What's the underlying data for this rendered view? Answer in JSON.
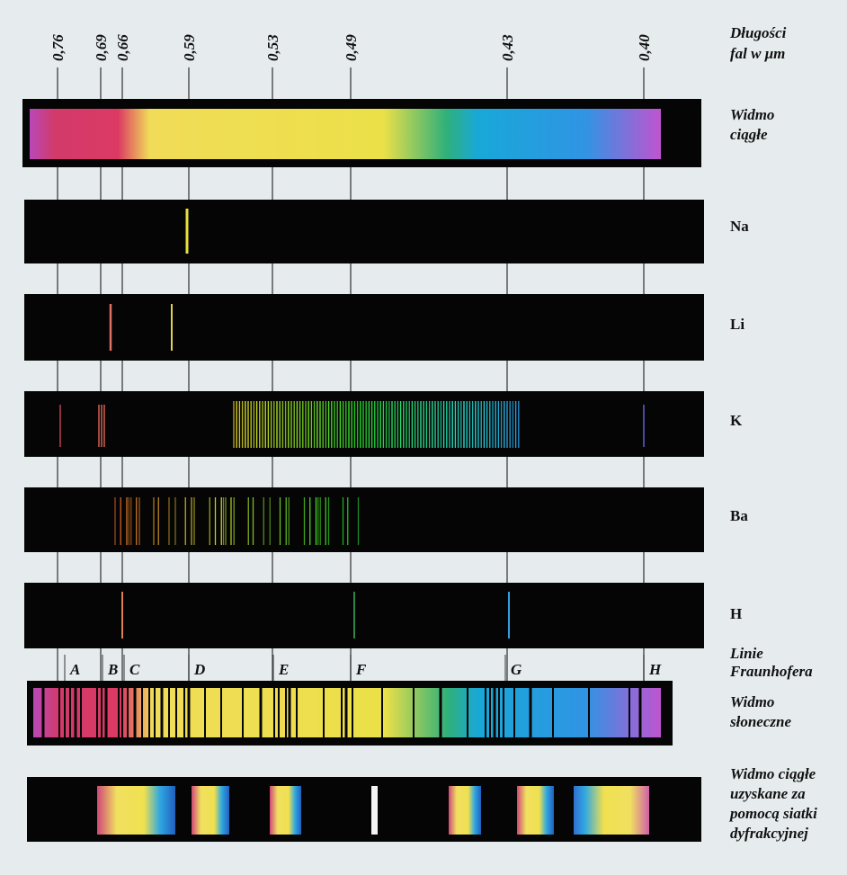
{
  "wavelength_header": [
    "Długości",
    "fal w μm"
  ],
  "wavelengths": [
    "0,76",
    "0,69",
    "0,66",
    "0,59",
    "0,53",
    "0,49",
    "0,43",
    "0,40"
  ],
  "spectra": [
    {
      "label": [
        "Widmo",
        "ciągłe"
      ]
    },
    {
      "label": [
        "Na"
      ]
    },
    {
      "label": [
        "Li"
      ]
    },
    {
      "label": [
        "K"
      ]
    },
    {
      "label": [
        "Ba"
      ]
    },
    {
      "label": [
        "H"
      ]
    },
    {
      "label": [
        "Widmo",
        "słoneczne"
      ]
    },
    {
      "label": [
        "Widmo ciągłe",
        "uzyskane za",
        "pomocą siatki",
        "dyfrakcyjnej"
      ]
    }
  ],
  "fraunhofer": {
    "label": [
      "Linie",
      "Fraunhofera"
    ],
    "letters": [
      "A",
      "B",
      "C",
      "D",
      "E",
      "F",
      "G",
      "H"
    ]
  }
}
